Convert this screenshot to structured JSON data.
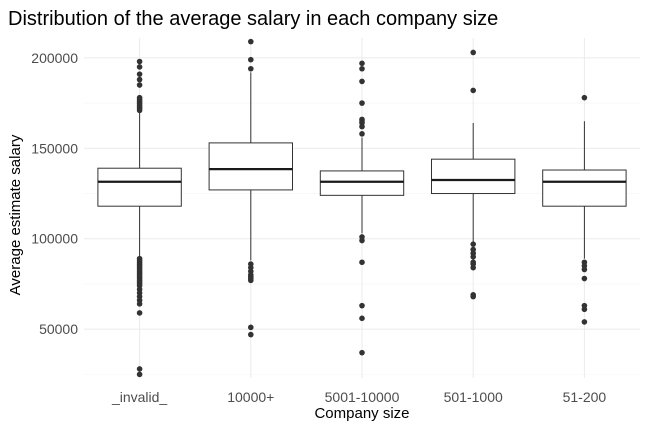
{
  "chart_data": {
    "type": "boxplot",
    "title": "Distribution of the average salary in each company size",
    "xlabel": "Company size",
    "ylabel": "Average estimate salary",
    "ylim": [
      23000,
      211000
    ],
    "yticks": [
      50000,
      100000,
      150000,
      200000
    ],
    "grid": true,
    "categories": [
      "_invalid_",
      "10000+",
      "5001-10000",
      "501-1000",
      "51-200"
    ],
    "boxes": [
      {
        "category": "_invalid_",
        "whisker_low": 90000,
        "q1": 118000,
        "median": 131500,
        "q3": 139000,
        "whisker_high": 170000,
        "outliers": [
          198000,
          195000,
          191000,
          188000,
          185000,
          178000,
          177000,
          176000,
          175000,
          174000,
          173000,
          172000,
          171000,
          89000,
          88000,
          87000,
          86000,
          85000,
          84000,
          83000,
          82000,
          81000,
          80000,
          79000,
          78000,
          77000,
          76000,
          75000,
          74000,
          72000,
          70000,
          68000,
          66000,
          64000,
          59000,
          28000,
          25000
        ]
      },
      {
        "category": "10000+",
        "whisker_low": 88000,
        "q1": 127000,
        "median": 138500,
        "q3": 153000,
        "whisker_high": 192000,
        "outliers": [
          209000,
          199000,
          194000,
          86000,
          84000,
          82000,
          80000,
          79000,
          78000,
          77000,
          51000,
          47000
        ]
      },
      {
        "category": "5001-10000",
        "whisker_low": 103000,
        "q1": 124000,
        "median": 131500,
        "q3": 137500,
        "whisker_high": 156000,
        "outliers": [
          197000,
          194000,
          187000,
          175000,
          166000,
          165000,
          164000,
          162000,
          158000,
          101000,
          99000,
          87000,
          63000,
          56000,
          37000
        ]
      },
      {
        "category": "501-1000",
        "whisker_low": 98000,
        "q1": 125000,
        "median": 132500,
        "q3": 144000,
        "whisker_high": 164000,
        "outliers": [
          203000,
          182000,
          97000,
          94000,
          92000,
          90000,
          87000,
          86000,
          84000,
          69000,
          68000
        ]
      },
      {
        "category": "51-200",
        "whisker_low": 89000,
        "q1": 118000,
        "median": 131500,
        "q3": 138000,
        "whisker_high": 165000,
        "outliers": [
          178000,
          87000,
          85000,
          83000,
          78000,
          63000,
          61000,
          54000
        ]
      }
    ]
  }
}
